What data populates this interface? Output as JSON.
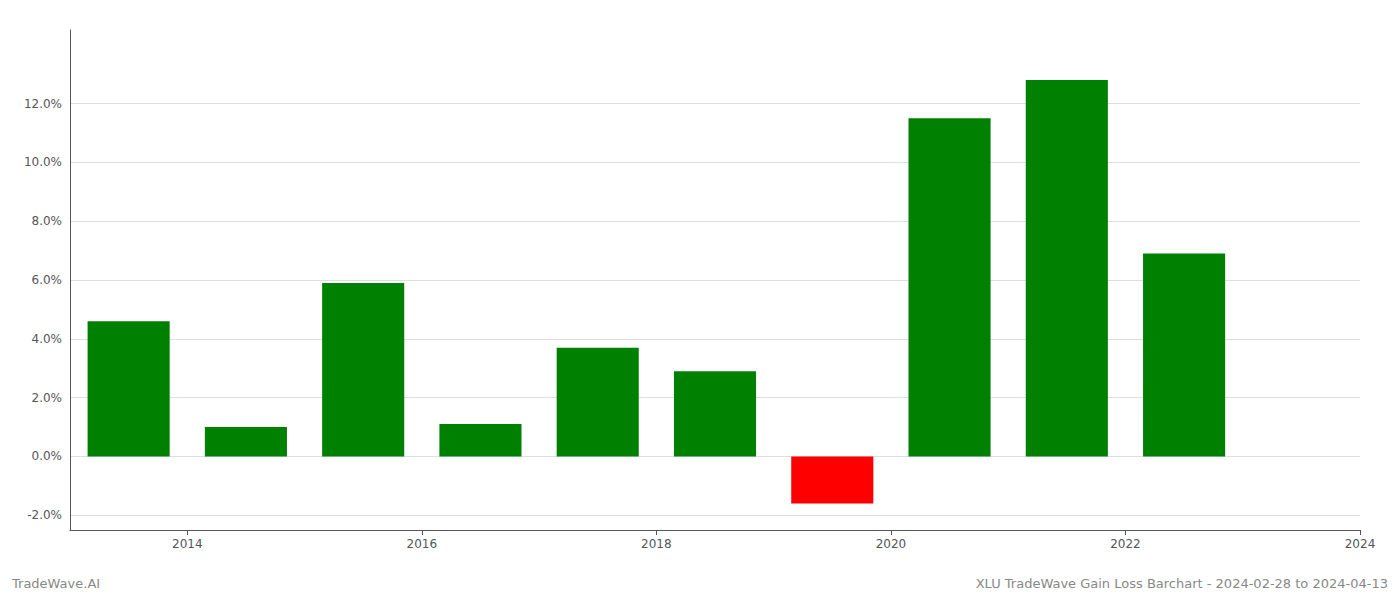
{
  "chart_data": {
    "type": "bar",
    "x": [
      2013,
      2014,
      2015,
      2016,
      2017,
      2018,
      2019,
      2020,
      2021,
      2022
    ],
    "values": [
      0.046,
      0.01,
      0.059,
      0.011,
      0.037,
      0.029,
      -0.016,
      0.115,
      0.128,
      0.069
    ],
    "colors": [
      "#008000",
      "#008000",
      "#008000",
      "#008000",
      "#008000",
      "#008000",
      "#ff0000",
      "#008000",
      "#008000",
      "#008000"
    ],
    "xlim": [
      2013,
      2024
    ],
    "xticks": [
      2014,
      2016,
      2018,
      2020,
      2022,
      2024
    ],
    "ylim": [
      -0.025,
      0.145
    ],
    "yticks": [
      {
        "value": -0.02,
        "label": "-2.0%"
      },
      {
        "value": 0.0,
        "label": "0.0%"
      },
      {
        "value": 0.02,
        "label": "2.0%"
      },
      {
        "value": 0.04,
        "label": "4.0%"
      },
      {
        "value": 0.06,
        "label": "6.0%"
      },
      {
        "value": 0.08,
        "label": "8.0%"
      },
      {
        "value": 0.1,
        "label": "10.0%"
      },
      {
        "value": 0.12,
        "label": "12.0%"
      }
    ],
    "grid": true,
    "annotations": [
      "TradeWave.AI",
      "XLU TradeWave Gain Loss Barchart - 2024-02-28 to 2024-04-13"
    ]
  }
}
